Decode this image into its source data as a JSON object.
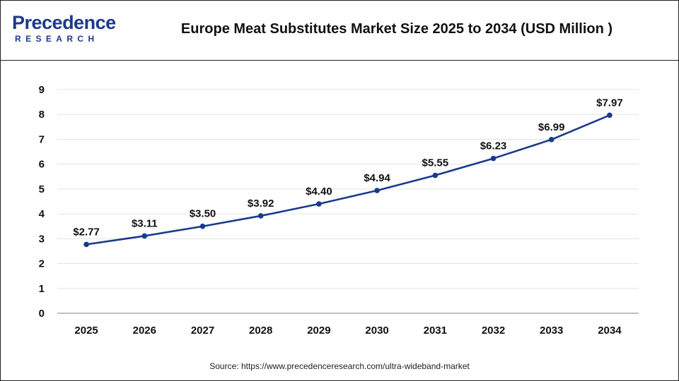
{
  "header": {
    "logo_word": "Precedence",
    "logo_sub": "RESEARCH",
    "title": "Europe Meat Substitutes Market Size 2025 to 2034 (USD Million )"
  },
  "footer": {
    "source": "Source: https://www.precedenceresearch.com/ultra-wideband-market"
  },
  "colors": {
    "line": "#1b3a8c",
    "point": "#1b3a8c",
    "grid": "#e3e3e3",
    "axis": "#9a9a9a",
    "text": "#111111",
    "brand": "#1b3a8c"
  },
  "chart_data": {
    "type": "line",
    "title": "Europe Meat Substitutes Market Size 2025 to 2034 (USD Million )",
    "xlabel": "",
    "ylabel": "",
    "categories": [
      "2025",
      "2026",
      "2027",
      "2028",
      "2029",
      "2030",
      "2031",
      "2032",
      "2033",
      "2034"
    ],
    "series": [
      {
        "values": [
          2.77,
          3.11,
          3.5,
          3.92,
          4.4,
          4.94,
          5.55,
          6.23,
          6.99,
          7.97
        ],
        "data_labels": [
          "$2.77",
          "$3.11",
          "$3.50",
          "$3.92",
          "$4.40",
          "$4.94",
          "$5.55",
          "$6.23",
          "$6.99",
          "$7.97"
        ]
      }
    ],
    "ylim": [
      0,
      9
    ],
    "yticks": [
      "0",
      "1",
      "2",
      "3",
      "4",
      "5",
      "6",
      "7",
      "8",
      "9"
    ],
    "grid": true,
    "legend": "none"
  }
}
